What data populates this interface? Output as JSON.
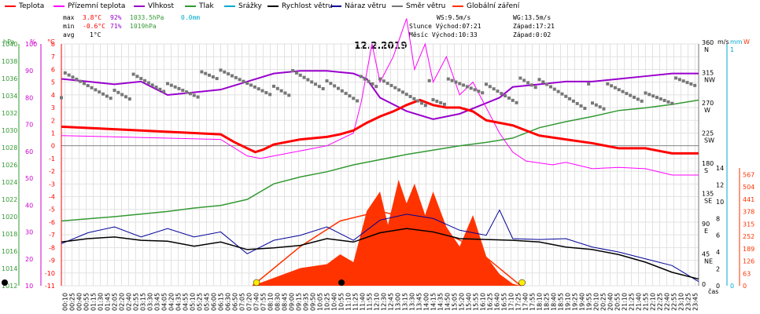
{
  "legend": [
    {
      "label": "Teplota",
      "color": "#ff0000"
    },
    {
      "label": "Přízemní teplota",
      "color": "#ff00ff"
    },
    {
      "label": "Vlhkost",
      "color": "#9900cc"
    },
    {
      "label": "Tlak",
      "color": "#339933"
    },
    {
      "label": "Srážky",
      "color": "#00aacc"
    },
    {
      "label": "Rychlost větru",
      "color": "#000000"
    },
    {
      "label": "Náraz větru",
      "color": "#000099"
    },
    {
      "label": "Směr větru",
      "color": "#777777"
    },
    {
      "label": "Globální záření",
      "color": "#ff3300"
    }
  ],
  "stats": {
    "max_label": "max",
    "max_temp": "3.8°C",
    "max_hum": "92%",
    "max_press": "1033.5hPa",
    "max_rain": "0.0mm",
    "min_label": "min",
    "min_temp": "-0.6°C",
    "min_hum": "71%",
    "min_press": "1019hPa",
    "avg_label": "avg",
    "avg_temp": "1°C",
    "ws": "WS:9.5m/s",
    "wg": "WG:13.5m/s",
    "sun": "Slunce Východ:07:21",
    "sun_set": "Západ:17:21",
    "moon": "Měsíc  Východ:10:33",
    "moon_set": "Západ:0:02"
  },
  "title": "12.2.2019",
  "axis_units": {
    "hpa": "hPa",
    "pct": "%",
    "degc": "°C",
    "ms": "m/s",
    "mm": "mm",
    "w": "W",
    "time": "čas"
  },
  "colors": {
    "temp": "#ff0000",
    "ground": "#ff00ff",
    "hum": "#9900cc",
    "press": "#339933",
    "rain": "#00aacc",
    "wind": "#000000",
    "gust": "#000099",
    "dir": "#777777",
    "rad": "#ff3300",
    "sun": "#ffee00"
  },
  "chart_data": {
    "type": "line",
    "x_range_hours": [
      0,
      24
    ],
    "hpa_ticks": [
      1012,
      1014,
      1016,
      1018,
      1020,
      1022,
      1024,
      1026,
      1028,
      1030,
      1032,
      1034,
      1036,
      1038,
      1040
    ],
    "pct_ticks": [
      10,
      20,
      30,
      40,
      50,
      60,
      70,
      80,
      90,
      100
    ],
    "degc_ticks": [
      -11,
      -10,
      -9,
      -8,
      -7,
      -6,
      -5,
      -4,
      -3,
      -2,
      -1,
      0,
      1,
      2,
      3,
      4,
      5,
      6,
      7,
      8
    ],
    "dir_ticks": [
      {
        "v": 0,
        "l": "0"
      },
      {
        "v": 45,
        "l": "45",
        "c": "NE"
      },
      {
        "v": 90,
        "l": "90",
        "c": "E"
      },
      {
        "v": 135,
        "l": "135",
        "c": "SE"
      },
      {
        "v": 180,
        "l": "180",
        "c": "S"
      },
      {
        "v": 225,
        "l": "225",
        "c": "SW"
      },
      {
        "v": 270,
        "l": "270",
        "c": "W"
      },
      {
        "v": 315,
        "l": "315",
        "c": "NW"
      },
      {
        "v": 360,
        "l": "360",
        "c": "N"
      }
    ],
    "ms_ticks": [
      0,
      2,
      4,
      6,
      8,
      10,
      12,
      14
    ],
    "rain_ticks": [
      0,
      1
    ],
    "w_ticks": [
      0,
      63,
      126,
      189,
      252,
      315,
      378,
      441,
      504,
      567
    ],
    "time_labels": [
      "00:10",
      "00:25",
      "00:40",
      "00:55",
      "01:15",
      "01:30",
      "01:45",
      "02:05",
      "02:20",
      "02:40",
      "02:55",
      "03:15",
      "03:30",
      "03:45",
      "04:05",
      "04:20",
      "04:35",
      "04:55",
      "05:10",
      "05:25",
      "05:45",
      "06:00",
      "06:15",
      "06:30",
      "06:50",
      "07:05",
      "07:20",
      "07:40",
      "07:55",
      "08:10",
      "08:30",
      "08:45",
      "09:00",
      "09:15",
      "09:35",
      "09:50",
      "10:05",
      "10:25",
      "10:40",
      "10:55",
      "11:10",
      "11:25",
      "11:40",
      "11:55",
      "12:10",
      "12:30",
      "12:45",
      "13:00",
      "13:15",
      "13:30",
      "13:45",
      "14:00",
      "14:15",
      "14:35",
      "14:50",
      "15:05",
      "15:20",
      "15:40",
      "15:55",
      "16:10",
      "16:25",
      "16:40",
      "16:55",
      "17:10",
      "17:25",
      "17:40",
      "17:55",
      "18:10",
      "18:25",
      "18:40",
      "18:55",
      "19:10",
      "19:25",
      "19:40",
      "19:55",
      "20:10",
      "20:25",
      "20:40",
      "20:55",
      "21:10",
      "21:25",
      "21:40",
      "21:55",
      "22:10",
      "22:25",
      "22:40",
      "22:55",
      "23:10",
      "23:25",
      "23:45"
    ],
    "temperature_c": [
      [
        0,
        1.5
      ],
      [
        1,
        1.4
      ],
      [
        2,
        1.3
      ],
      [
        3,
        1.2
      ],
      [
        4,
        1.1
      ],
      [
        5,
        1.0
      ],
      [
        6,
        0.9
      ],
      [
        6.5,
        0.3
      ],
      [
        7,
        -0.2
      ],
      [
        7.3,
        -0.5
      ],
      [
        7.6,
        -0.3
      ],
      [
        8,
        0.1
      ],
      [
        9,
        0.5
      ],
      [
        10,
        0.7
      ],
      [
        10.5,
        0.9
      ],
      [
        11,
        1.2
      ],
      [
        11.5,
        1.8
      ],
      [
        12,
        2.3
      ],
      [
        12.5,
        2.7
      ],
      [
        13,
        3.2
      ],
      [
        13.5,
        3.6
      ],
      [
        14,
        3.2
      ],
      [
        14.5,
        3.0
      ],
      [
        15,
        3.0
      ],
      [
        15.5,
        2.7
      ],
      [
        16,
        2.0
      ],
      [
        16.5,
        1.8
      ],
      [
        17,
        1.6
      ],
      [
        17.5,
        1.2
      ],
      [
        18,
        0.8
      ],
      [
        19,
        0.5
      ],
      [
        20,
        0.2
      ],
      [
        21,
        -0.2
      ],
      [
        22,
        -0.2
      ],
      [
        22.5,
        -0.4
      ],
      [
        23,
        -0.6
      ],
      [
        24,
        -0.6
      ]
    ],
    "ground_temp_c": [
      [
        0,
        0.8
      ],
      [
        6,
        0.5
      ],
      [
        7,
        -0.8
      ],
      [
        7.5,
        -1.0
      ],
      [
        8,
        -0.8
      ],
      [
        10,
        0.0
      ],
      [
        11,
        1.0
      ],
      [
        11.3,
        3.5
      ],
      [
        11.7,
        8.0
      ],
      [
        12,
        5.0
      ],
      [
        12.5,
        7.0
      ],
      [
        13,
        10.0
      ],
      [
        13.3,
        6.0
      ],
      [
        13.7,
        8.0
      ],
      [
        14,
        5.0
      ],
      [
        14.5,
        7.0
      ],
      [
        15,
        4.0
      ],
      [
        15.5,
        5.0
      ],
      [
        16,
        3.0
      ],
      [
        16.5,
        1.0
      ],
      [
        17,
        -0.5
      ],
      [
        17.5,
        -1.2
      ],
      [
        18.5,
        -1.5
      ],
      [
        19,
        -1.3
      ],
      [
        20,
        -1.8
      ],
      [
        21,
        -1.7
      ],
      [
        22,
        -1.8
      ],
      [
        23,
        -2.3
      ],
      [
        24,
        -2.3
      ]
    ],
    "humidity_pct": [
      [
        0,
        87
      ],
      [
        1,
        86
      ],
      [
        2,
        85
      ],
      [
        3,
        86
      ],
      [
        4,
        81
      ],
      [
        5,
        82
      ],
      [
        6,
        83
      ],
      [
        7,
        86
      ],
      [
        8,
        89
      ],
      [
        9,
        90
      ],
      [
        10,
        90
      ],
      [
        11,
        89
      ],
      [
        11.5,
        87
      ],
      [
        12,
        80
      ],
      [
        13,
        75
      ],
      [
        14,
        72
      ],
      [
        15,
        74
      ],
      [
        16,
        78
      ],
      [
        16.5,
        80
      ],
      [
        17,
        84
      ],
      [
        18,
        85
      ],
      [
        19,
        86
      ],
      [
        20,
        86
      ],
      [
        21,
        87
      ],
      [
        22,
        88
      ],
      [
        23,
        89
      ],
      [
        24,
        89
      ]
    ],
    "pressure_hpa": [
      [
        0,
        1019.5
      ],
      [
        2,
        1020.0
      ],
      [
        4,
        1020.6
      ],
      [
        5,
        1021.0
      ],
      [
        6,
        1021.3
      ],
      [
        7,
        1022.0
      ],
      [
        8,
        1023.8
      ],
      [
        9,
        1024.6
      ],
      [
        10,
        1025.2
      ],
      [
        11,
        1026.0
      ],
      [
        12,
        1026.6
      ],
      [
        13,
        1027.2
      ],
      [
        14,
        1027.7
      ],
      [
        15,
        1028.2
      ],
      [
        16,
        1028.6
      ],
      [
        17,
        1029.1
      ],
      [
        18,
        1030.3
      ],
      [
        19,
        1031.0
      ],
      [
        20,
        1031.6
      ],
      [
        21,
        1032.3
      ],
      [
        22,
        1032.6
      ],
      [
        23,
        1033.0
      ],
      [
        24,
        1033.5
      ]
    ],
    "wind_speed_ms": [
      [
        0,
        5.2
      ],
      [
        1,
        5.6
      ],
      [
        2,
        5.8
      ],
      [
        3,
        5.4
      ],
      [
        4,
        5.3
      ],
      [
        5,
        4.7
      ],
      [
        6,
        5.2
      ],
      [
        7,
        4.3
      ],
      [
        8,
        4.5
      ],
      [
        9,
        4.8
      ],
      [
        10,
        5.6
      ],
      [
        11,
        5.2
      ],
      [
        12,
        6.3
      ],
      [
        13,
        6.8
      ],
      [
        14,
        6.4
      ],
      [
        15,
        5.6
      ],
      [
        16,
        5.5
      ],
      [
        17,
        5.4
      ],
      [
        18,
        5.2
      ],
      [
        19,
        4.6
      ],
      [
        20,
        4.3
      ],
      [
        21,
        3.7
      ],
      [
        22,
        2.8
      ],
      [
        23,
        1.6
      ],
      [
        24,
        0.8
      ]
    ],
    "wind_gust_ms": [
      [
        0,
        5.0
      ],
      [
        1,
        6.3
      ],
      [
        2,
        7.0
      ],
      [
        3,
        5.8
      ],
      [
        4,
        6.8
      ],
      [
        5,
        5.8
      ],
      [
        6,
        6.4
      ],
      [
        7,
        3.8
      ],
      [
        8,
        5.4
      ],
      [
        9,
        6.0
      ],
      [
        10,
        7.0
      ],
      [
        11,
        5.4
      ],
      [
        12,
        7.8
      ],
      [
        13,
        8.5
      ],
      [
        14,
        8.0
      ],
      [
        15,
        6.6
      ],
      [
        16,
        6.0
      ],
      [
        16.5,
        9.0
      ],
      [
        17,
        5.6
      ],
      [
        18,
        5.5
      ],
      [
        19,
        5.6
      ],
      [
        20,
        4.6
      ],
      [
        21,
        4.0
      ],
      [
        22,
        3.2
      ],
      [
        23,
        2.4
      ],
      [
        24,
        0.5
      ]
    ],
    "wind_dir_deg_samples": [
      [
        0,
        300
      ],
      [
        2,
        298
      ],
      [
        4,
        295
      ],
      [
        6,
        302
      ],
      [
        8,
        305
      ],
      [
        10,
        300
      ],
      [
        12,
        290
      ],
      [
        14,
        286
      ],
      [
        16,
        296
      ],
      [
        18,
        290
      ],
      [
        20,
        282
      ],
      [
        22,
        284
      ],
      [
        24,
        295
      ]
    ],
    "radiation_w": [
      [
        7.2,
        0
      ],
      [
        8,
        40
      ],
      [
        9,
        90
      ],
      [
        10,
        110
      ],
      [
        10.5,
        160
      ],
      [
        11,
        120
      ],
      [
        11.5,
        380
      ],
      [
        12,
        480
      ],
      [
        12.3,
        310
      ],
      [
        12.7,
        540
      ],
      [
        13,
        420
      ],
      [
        13.3,
        520
      ],
      [
        13.7,
        360
      ],
      [
        14,
        480
      ],
      [
        14.5,
        300
      ],
      [
        15,
        200
      ],
      [
        15.5,
        360
      ],
      [
        16,
        150
      ],
      [
        16.5,
        60
      ],
      [
        17,
        10
      ],
      [
        17.3,
        0
      ]
    ],
    "theoretical_radiation_w": [
      [
        7.2,
        0
      ],
      [
        9,
        200
      ],
      [
        10.5,
        330
      ],
      [
        12,
        380
      ],
      [
        13.5,
        330
      ],
      [
        15.5,
        200
      ],
      [
        17.3,
        0
      ]
    ]
  }
}
